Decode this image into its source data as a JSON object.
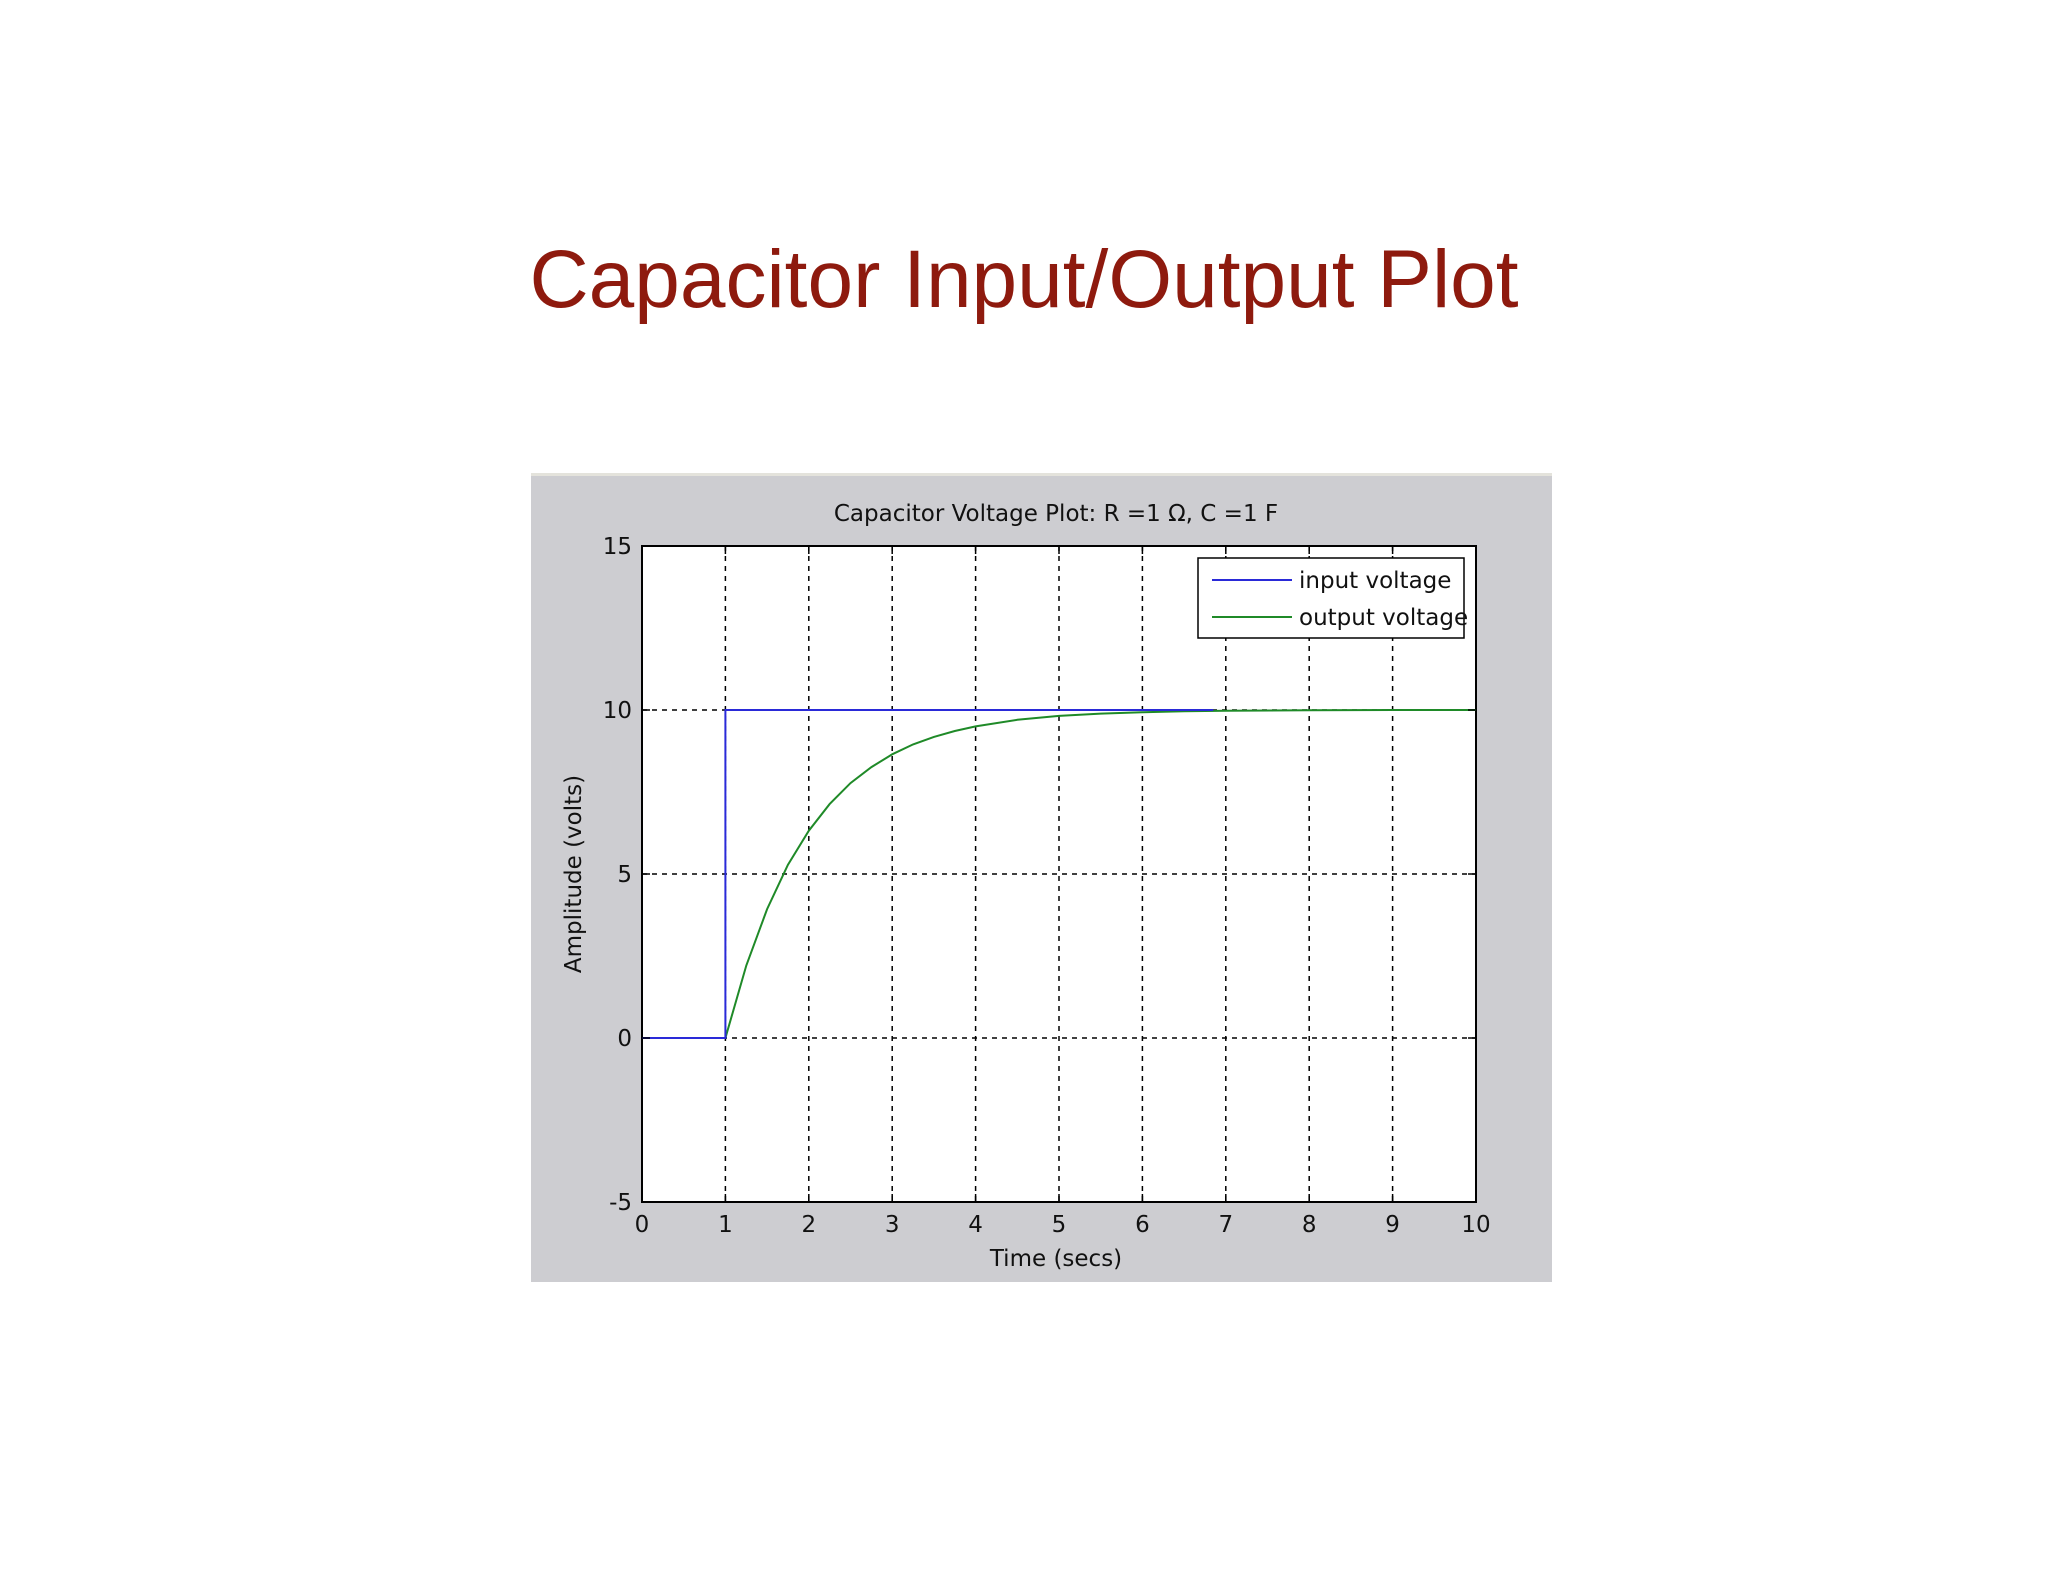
{
  "slide": {
    "title": "Capacitor Input/Output Plot"
  },
  "colors": {
    "title": "#8e1a0e",
    "panel": "#cdcdd1",
    "input_series": "#2a2ad8",
    "output_series": "#1f8a28"
  },
  "chart_data": {
    "type": "line",
    "title": "Capacitor Voltage Plot: R =1 Ω, C =1 F",
    "xlabel": "Time (secs)",
    "ylabel": "Amplitude (volts)",
    "xlim": [
      0,
      10
    ],
    "ylim": [
      -5,
      15
    ],
    "xticks": [
      "0",
      "1",
      "2",
      "3",
      "4",
      "5",
      "6",
      "7",
      "8",
      "9",
      "10"
    ],
    "yticks": [
      "-5",
      "0",
      "5",
      "10",
      "15"
    ],
    "grid": true,
    "legend": "top-right",
    "series": [
      {
        "name": "input voltage",
        "color": "#2a2ad8",
        "x": [
          0,
          1,
          1,
          6.85
        ],
        "y": [
          0,
          0,
          10,
          10
        ]
      },
      {
        "name": "output voltage",
        "color": "#1f8a28",
        "x": [
          0,
          1,
          1.25,
          1.5,
          1.75,
          2,
          2.25,
          2.5,
          2.75,
          3,
          3.25,
          3.5,
          3.75,
          4,
          4.5,
          5,
          5.5,
          6,
          6.5,
          7,
          8,
          9,
          10
        ],
        "y": [
          0,
          0,
          2.21,
          3.93,
          5.28,
          6.32,
          7.13,
          7.77,
          8.26,
          8.65,
          8.95,
          9.18,
          9.36,
          9.5,
          9.7,
          9.82,
          9.89,
          9.93,
          9.96,
          9.98,
          9.99,
          10,
          10
        ]
      }
    ]
  }
}
